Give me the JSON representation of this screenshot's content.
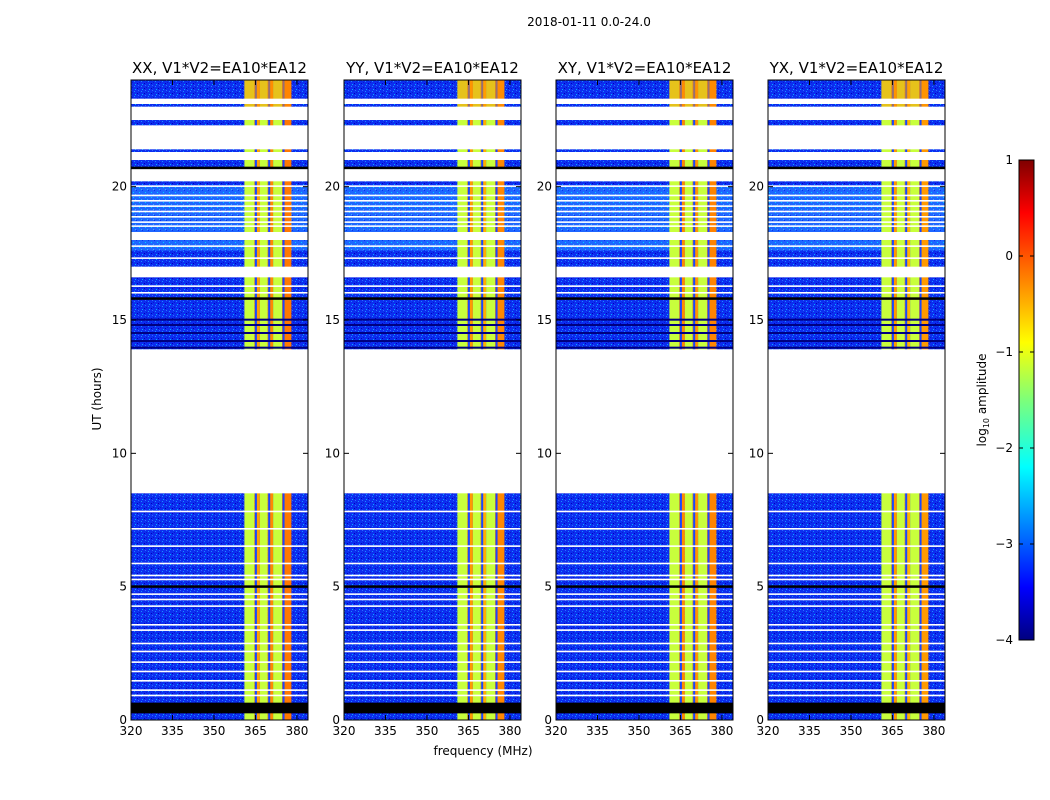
{
  "chart_data": {
    "type": "heatmap",
    "title": "2018-01-11 0.0-24.0",
    "xlabel": "frequency (MHz)",
    "ylabel": "UT (hours)",
    "xlim": [
      320,
      384
    ],
    "ylim": [
      0,
      24
    ],
    "xticks": [
      "320",
      "335",
      "350",
      "365",
      "380"
    ],
    "yticks": [
      "0",
      "5",
      "10",
      "15",
      "20"
    ],
    "panels": [
      {
        "title": "XX, V1*V2=EA10*EA12"
      },
      {
        "title": "YY, V1*V2=EA10*EA12"
      },
      {
        "title": "XY, V1*V2=EA10*EA12"
      },
      {
        "title": "YX, V1*V2=EA10*EA12"
      }
    ],
    "colorbar": {
      "label": "log",
      "label_sub": "10",
      "label_rest": " amplitude",
      "range": [
        -4,
        1
      ],
      "ticks": [
        "1",
        "0",
        "−1",
        "−2",
        "−3",
        "−4"
      ],
      "colormap": "jet"
    },
    "data_gap_hours": [
      8.5,
      13.9
    ],
    "flagged_black_band_hours": [
      0.25,
      0.65
    ],
    "bright_rfi_band_mhz": [
      361,
      378
    ]
  }
}
